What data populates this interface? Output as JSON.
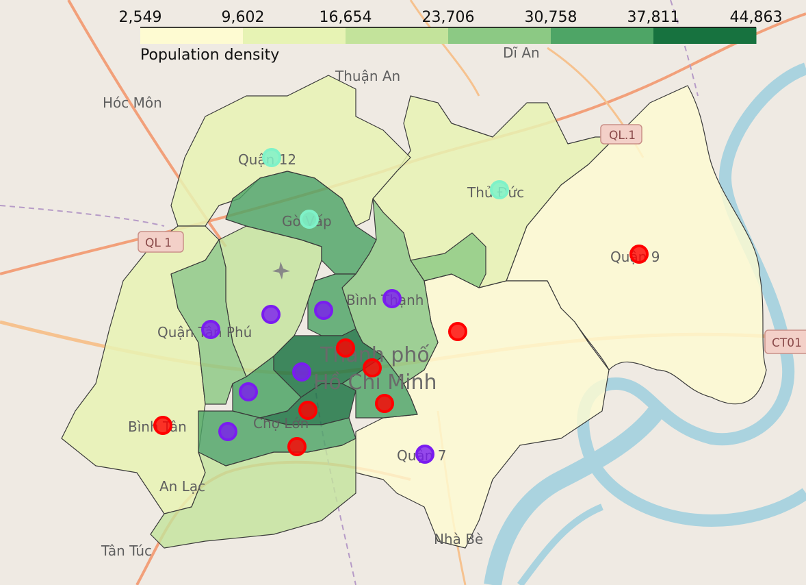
{
  "legend": {
    "title": "Population density",
    "ticks": [
      "2,549",
      "9,602",
      "16,654",
      "23,706",
      "30,758",
      "37,811",
      "44,863"
    ],
    "colors": [
      "#fefbd2",
      "#e7f3b4",
      "#c3e39b",
      "#8cc984",
      "#4ea566",
      "#17723f"
    ]
  },
  "places": {
    "thuan_an": "Thuận An",
    "di_an": "Dĩ An",
    "hoc_mon": "Hóc Môn",
    "quan_12": "Quận 12",
    "thu_duc": "Thủ Đức",
    "go_vap": "Gò Vấp",
    "quan_9": "Quận 9",
    "binh_thanh": "Bình Thạnh",
    "tan_phu": "Quận Tân Phú",
    "thanh_pho": "Thành phố",
    "ho_chi_minh": "Hồ Chí Minh",
    "binh_tan": "Bình Tân",
    "cho_lon": "Chợ Lớn",
    "an_lac": "An Lạc",
    "quan_7": "Quận 7",
    "nha_be": "Nhà Bè",
    "tan_tuc": "Tân Túc"
  },
  "shields": {
    "ql1_top": "QL.1",
    "ql1_left": "QL 1",
    "ct01": "CT01"
  },
  "marker_colors": {
    "red": "#ff0000",
    "purple": "#7a1cf0",
    "mint": "#7ff2c8"
  }
}
